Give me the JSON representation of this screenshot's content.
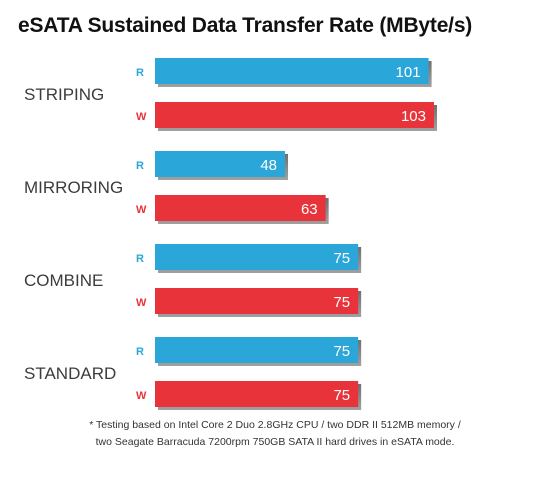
{
  "chart_data": {
    "type": "bar",
    "orientation": "horizontal",
    "title": "eSATA Sustained Data Transfer Rate (MByte/s)",
    "categories": [
      "STRIPING",
      "MIRRORING",
      "COMBINE",
      "STANDARD"
    ],
    "series": [
      {
        "name": "R",
        "color": "#2aa7d8",
        "values": [
          101,
          48,
          75,
          75
        ]
      },
      {
        "name": "W",
        "color": "#e8333a",
        "values": [
          103,
          63,
          75,
          75
        ]
      }
    ],
    "xlim": [
      0,
      103
    ],
    "grid": false,
    "legend": "none"
  },
  "footnote": {
    "line1": "* Testing based on Intel Core 2 Duo 2.8GHz CPU / two DDR II 512MB memory /",
    "line2": "two Seagate Barracuda 7200rpm 750GB SATA II hard drives in eSATA mode."
  },
  "colors": {
    "r_label": "#2aa7d8",
    "w_label": "#e8333a",
    "shadow": "#555555",
    "text_dark": "#3c3c3c"
  }
}
